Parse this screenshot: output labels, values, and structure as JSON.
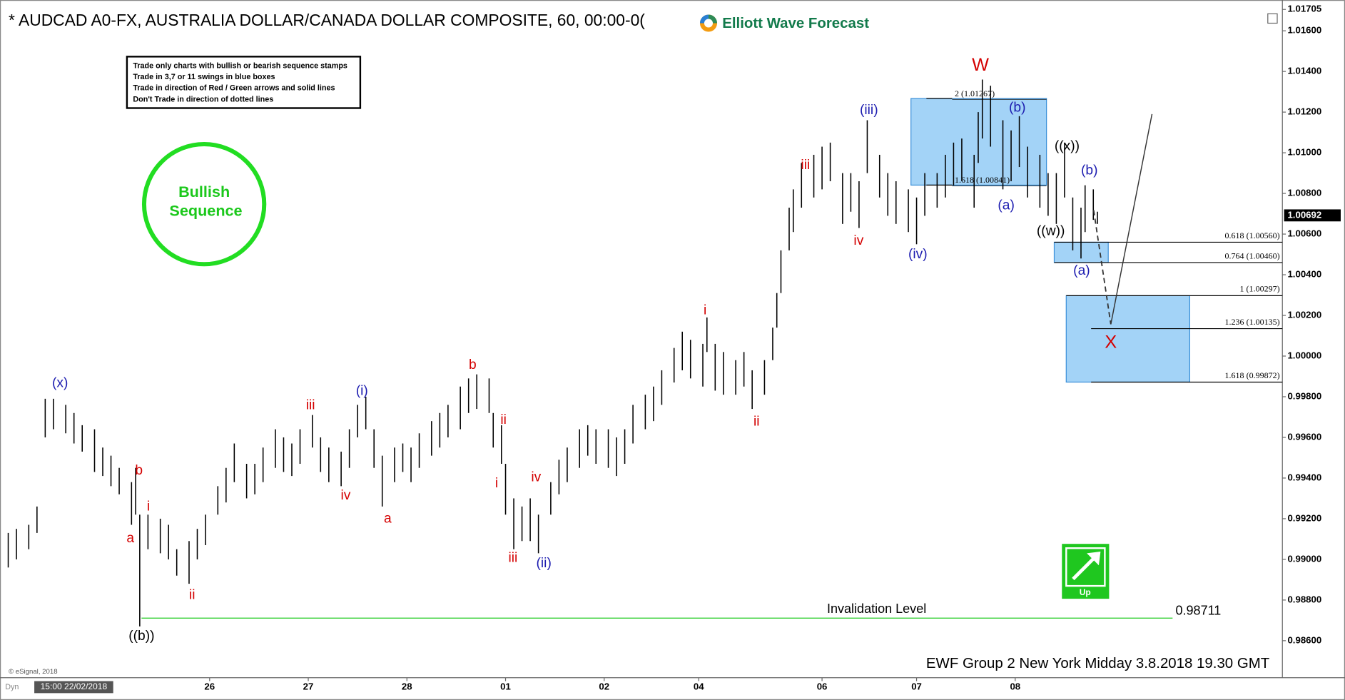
{
  "chart_data": {
    "type": "ohlc",
    "title": "* AUDCAD A0-FX, AUSTRALIA DOLLAR/CANADA DOLLAR COMPOSITE, 60, 00:00-0(",
    "brand": "Elliott Wave Forecast",
    "notes": [
      "Trade only charts with bullish or bearish sequence stamps",
      "Trade in 3,7 or 11 swings in blue boxes",
      "Trade in direction of Red / Green arrows and solid lines",
      "Don't Trade in direction of dotted lines"
    ],
    "badge": [
      "Bullish",
      "Sequence"
    ],
    "signal": "Up",
    "footer": "EWF Group 2 New York Midday 3.8.2018 19.30 GMT",
    "copyright": "© eSignal, 2018",
    "mode": "Dyn",
    "start_label": "15:00 22/02/2018",
    "color": "#000000",
    "x": [
      1,
      3,
      6,
      8,
      10,
      12,
      15,
      17,
      19,
      22,
      24,
      26,
      28,
      31,
      32,
      33,
      35,
      38,
      40,
      42,
      45,
      47,
      49,
      52,
      54,
      56,
      59,
      61,
      63,
      66,
      68,
      70,
      72,
      75,
      77,
      79,
      82,
      84,
      86,
      88,
      90,
      92,
      95,
      97,
      99,
      101,
      104,
      106,
      108,
      111,
      113,
      115,
      118,
      119,
      121,
      122,
      124,
      126,
      128,
      130,
      133,
      135,
      137,
      140,
      142,
      144,
      147,
      149,
      151,
      153,
      156,
      158,
      160,
      163,
      165,
      167,
      170,
      171,
      173,
      175,
      178,
      180,
      182,
      185,
      187,
      188,
      189,
      191,
      192,
      194,
      197,
      199,
      201,
      204,
      206,
      208,
      210,
      213,
      215,
      217,
      220,
      222,
      224,
      227,
      229,
      231,
      233,
      236,
      237,
      238,
      240,
      243,
      245,
      247,
      249,
      252,
      254,
      256,
      258,
      260,
      262,
      263,
      265,
      266
    ],
    "high": [
      0.9913,
      0.9915,
      0.9917,
      0.9926,
      0.9979,
      0.9979,
      0.9976,
      0.9972,
      0.9966,
      0.9964,
      0.9955,
      0.9951,
      0.9945,
      0.9938,
      0.9945,
      0.9922,
      0.9922,
      0.992,
      0.9917,
      0.9905,
      0.9909,
      0.9915,
      0.9922,
      0.9936,
      0.9945,
      0.9957,
      0.9947,
      0.9947,
      0.9955,
      0.9964,
      0.996,
      0.9957,
      0.9964,
      0.9971,
      0.996,
      0.9955,
      0.9953,
      0.9964,
      0.9976,
      0.998,
      0.9964,
      0.9951,
      0.9955,
      0.9957,
      0.9955,
      0.9962,
      0.9968,
      0.9972,
      0.9976,
      0.9985,
      0.9989,
      0.9991,
      0.9989,
      0.9972,
      0.9966,
      0.9947,
      0.993,
      0.9926,
      0.993,
      0.9922,
      0.9938,
      0.9949,
      0.9955,
      0.9964,
      0.9966,
      0.9964,
      0.9964,
      0.996,
      0.9964,
      0.9976,
      0.9981,
      0.9985,
      0.9993,
      1.0004,
      1.0012,
      1.0008,
      1.0006,
      1.0019,
      1.0006,
      1.0002,
      0.9998,
      1.0002,
      0.9993,
      0.9998,
      1.0014,
      1.0031,
      1.0052,
      1.0073,
      1.0082,
      1.0095,
      1.0099,
      1.0103,
      1.0105,
      1.009,
      1.009,
      1.0086,
      1.0116,
      1.0099,
      1.009,
      1.0086,
      1.0082,
      1.0078,
      1.009,
      1.009,
      1.0099,
      1.0105,
      1.0107,
      1.0099,
      1.012,
      1.0136,
      1.0133,
      1.0116,
      1.0111,
      1.0118,
      1.0103,
      1.0099,
      1.009,
      1.009,
      1.0105,
      1.0078,
      1.0073,
      1.0084,
      1.0082,
      1.0071
    ],
    "low": [
      0.9896,
      0.99,
      0.9905,
      0.9913,
      0.996,
      0.9964,
      0.9962,
      0.9957,
      0.9953,
      0.9943,
      0.9941,
      0.9936,
      0.9932,
      0.9917,
      0.9922,
      0.9867,
      0.9905,
      0.9903,
      0.99,
      0.9892,
      0.9888,
      0.99,
      0.9907,
      0.9922,
      0.9928,
      0.9938,
      0.993,
      0.9932,
      0.9938,
      0.9945,
      0.9943,
      0.9941,
      0.9947,
      0.9955,
      0.9943,
      0.9938,
      0.9936,
      0.9945,
      0.996,
      0.9964,
      0.9945,
      0.9926,
      0.9938,
      0.9943,
      0.9938,
      0.9945,
      0.9951,
      0.9955,
      0.996,
      0.9964,
      0.9972,
      0.9974,
      0.9972,
      0.9955,
      0.9947,
      0.9922,
      0.9905,
      0.9909,
      0.9909,
      0.9903,
      0.9922,
      0.9932,
      0.9938,
      0.9945,
      0.9951,
      0.9947,
      0.9945,
      0.9941,
      0.9947,
      0.9957,
      0.9964,
      0.9968,
      0.9976,
      0.9987,
      0.9993,
      0.9989,
      0.9985,
      1.0002,
      0.9983,
      0.9981,
      0.9981,
      0.9985,
      0.9974,
      0.9981,
      0.9998,
      1.0014,
      1.0031,
      1.0052,
      1.0061,
      1.0073,
      1.0078,
      1.0082,
      1.0086,
      1.0065,
      1.0071,
      1.0063,
      1.009,
      1.0078,
      1.0069,
      1.0065,
      1.0061,
      1.0055,
      1.0069,
      1.0073,
      1.0078,
      1.0084,
      1.0086,
      1.0073,
      1.0095,
      1.0107,
      1.0103,
      1.0082,
      1.0086,
      1.0093,
      1.0078,
      1.0073,
      1.0069,
      1.0065,
      1.0078,
      1.0052,
      1.0048,
      1.0061,
      1.0067,
      1.0065
    ],
    "xlim": [
      -1,
      311
    ],
    "xticks": [
      {
        "value": 50,
        "label": "26"
      },
      {
        "value": 74,
        "label": "27"
      },
      {
        "value": 98,
        "label": "28"
      },
      {
        "value": 122,
        "label": "01"
      },
      {
        "value": 146,
        "label": "02"
      },
      {
        "value": 169,
        "label": "04"
      },
      {
        "value": 199,
        "label": "06"
      },
      {
        "value": 222,
        "label": "07"
      },
      {
        "value": 246,
        "label": "08"
      }
    ],
    "ylim": [
      0.98418,
      1.01705
    ],
    "yticks": [
      {
        "value": 0.986,
        "label": "0.98600"
      },
      {
        "value": 0.988,
        "label": "0.98800"
      },
      {
        "value": 0.99,
        "label": "0.99000"
      },
      {
        "value": 0.992,
        "label": "0.99200"
      },
      {
        "value": 0.994,
        "label": "0.99400"
      },
      {
        "value": 0.996,
        "label": "0.99600"
      },
      {
        "value": 0.998,
        "label": "0.99800"
      },
      {
        "value": 1.0,
        "label": "1.00000"
      },
      {
        "value": 1.002,
        "label": "1.00200"
      },
      {
        "value": 1.004,
        "label": "1.00400"
      },
      {
        "value": 1.006,
        "label": "1.00600"
      },
      {
        "value": 1.008,
        "label": "1.00800"
      },
      {
        "value": 1.01,
        "label": "1.01000"
      },
      {
        "value": 1.012,
        "label": "1.01200"
      },
      {
        "value": 1.014,
        "label": "1.01400"
      },
      {
        "value": 1.016,
        "label": "1.01600"
      },
      1.01705
    ],
    "last_price": 1.00692,
    "invalidation": {
      "label": "Invalidation Level",
      "value": 0.98711
    },
    "zones": [
      {
        "levels": [
          {
            "value": 1.01267,
            "label": "2 (1.01267)"
          },
          {
            "value": 1.00841,
            "label": "1.618 (1.00841)"
          }
        ]
      },
      {
        "levels": [
          {
            "value": 1.0056,
            "label": "0.618 (1.00560)"
          },
          {
            "value": 1.0046,
            "label": "0.764 (1.00460)"
          }
        ]
      },
      {
        "levels": [
          {
            "value": 1.00297,
            "label": "1 (1.00297)"
          },
          {
            "value": 1.00135,
            "label": "1.236 (1.00135)"
          },
          {
            "value": 0.99872,
            "label": "1.618 (0.99872)"
          }
        ]
      }
    ],
    "zone_color": "#a3d3f7",
    "wave_labels": [
      {
        "text": "(x)",
        "color": "#1c1cb0"
      },
      {
        "text": "b",
        "color": "#d40000"
      },
      {
        "text": "i",
        "color": "#d40000"
      },
      {
        "text": "a",
        "color": "#d40000"
      },
      {
        "text": "((b))",
        "color": "#000000"
      },
      {
        "text": "ii",
        "color": "#d40000"
      },
      {
        "text": "iii",
        "color": "#d40000"
      },
      {
        "text": "iv",
        "color": "#d40000"
      },
      {
        "text": "(i)",
        "color": "#1c1cb0"
      },
      {
        "text": "a",
        "color": "#d40000"
      },
      {
        "text": "b",
        "color": "#d40000"
      },
      {
        "text": "ii",
        "color": "#d40000"
      },
      {
        "text": "i",
        "color": "#d40000"
      },
      {
        "text": "iii",
        "color": "#d40000"
      },
      {
        "text": "iv",
        "color": "#d40000"
      },
      {
        "text": "(ii)",
        "color": "#1c1cb0"
      },
      {
        "text": "i",
        "color": "#d40000"
      },
      {
        "text": "ii",
        "color": "#d40000"
      },
      {
        "text": "iii",
        "color": "#d40000"
      },
      {
        "text": "iv",
        "color": "#d40000"
      },
      {
        "text": "(iii)",
        "color": "#1c1cb0"
      },
      {
        "text": "(iv)",
        "color": "#1c1cb0"
      },
      {
        "text": "W",
        "color": "#d40000"
      },
      {
        "text": "(b)",
        "color": "#1c1cb0"
      },
      {
        "text": "(a)",
        "color": "#1c1cb0"
      },
      {
        "text": "((x))",
        "color": "#000000"
      },
      {
        "text": "((w))",
        "color": "#000000"
      },
      {
        "text": "(b)",
        "color": "#1c1cb0"
      },
      {
        "text": "(a)",
        "color": "#1c1cb0"
      },
      {
        "text": "X",
        "color": "#d40000"
      }
    ]
  }
}
